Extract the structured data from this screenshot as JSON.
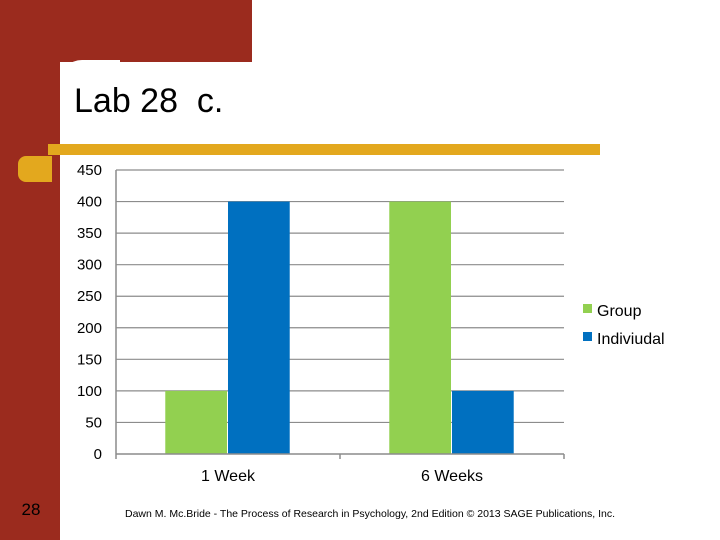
{
  "slide": {
    "title": "Lab 28  c.",
    "page_number": "28",
    "footer": "Dawn M. Mc.Bride - The Process of Research in Psychology, 2nd Edition © 2013 SAGE Publications, Inc."
  },
  "colors": {
    "sidebar": "#9b2b1e",
    "accent": "#e3a81e",
    "group": "#92d050",
    "individual": "#0070c0"
  },
  "chart_data": {
    "type": "bar",
    "title": "",
    "xlabel": "",
    "ylabel": "",
    "categories": [
      "1 Week",
      "6 Weeks"
    ],
    "series": [
      {
        "name": "Group",
        "values": [
          100,
          400
        ]
      },
      {
        "name": "Indiviudal",
        "values": [
          400,
          100
        ]
      }
    ],
    "ylim": [
      0,
      450
    ],
    "yticks": [
      0,
      50,
      100,
      150,
      200,
      250,
      300,
      350,
      400,
      450
    ],
    "grid": true,
    "legend": "right"
  }
}
